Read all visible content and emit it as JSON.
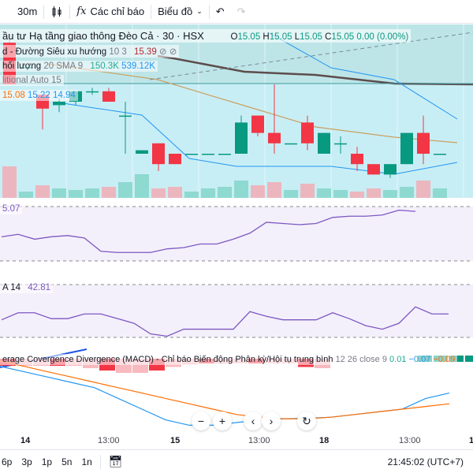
{
  "toolbar": {
    "interval": "30m",
    "indicators": "Các chỉ báo",
    "chart_type": "Biểu đồ",
    "candle_icon": "candles-icon",
    "fx_icon": "fx-icon",
    "undo_icon": "undo-icon",
    "redo_icon": "redo-icon"
  },
  "legend": {
    "symbol": "ầu tư Hạ tầng giao thông Đèo Cả · 30 · HSX",
    "o_label": "O",
    "o": "15.05",
    "h_label": "H",
    "h": "15.05",
    "l_label": "L",
    "l": "15.05",
    "c_label": "C",
    "c": "15.05",
    "change": "0.00 (0.00%)",
    "supertrend": "d - Đường Siêu xu hướng",
    "supertrend_params": "10 3",
    "supertrend_value": "15.39",
    "volume": "hối lượng",
    "volume_params": "20 SMA 9",
    "volume_v1": "150.3K",
    "volume_v2": "539.12K",
    "bb": "litional Auto 15",
    "bb_v1": "15.08",
    "bb_v2": "15.22",
    "bb_v3": "14.94"
  },
  "rsi": {
    "value": "5.07"
  },
  "pane2": {
    "label": "A 14",
    "value": "42.81"
  },
  "macd": {
    "label": "erage Covergence Divergence (MACD) - Chỉ báo Biến động Phân kỳ/Hội tụ trung bình",
    "params": "12 26 close 9",
    "v1": "0.01",
    "v2": "−0.07",
    "v3": "−0.09"
  },
  "colors": {
    "up": "#089981",
    "down": "#f23645",
    "bg": "#c8eef5",
    "rsi": "#7e57c2",
    "macd": "#2196f3",
    "signal": "#ff6d00"
  },
  "time_axis": [
    {
      "label": "14",
      "bold": true
    },
    {
      "label": "13:00"
    },
    {
      "label": "15",
      "bold": true
    },
    {
      "label": "13:00"
    },
    {
      "label": "18",
      "bold": true
    },
    {
      "label": "13:00"
    },
    {
      "label": "1",
      "bold": true
    }
  ],
  "bottom": {
    "ranges": [
      "6p",
      "3p",
      "1p",
      "5n",
      "1n"
    ],
    "clock": "21:45:02 (UTC+7)",
    "date_icon": "goto-date-icon"
  },
  "nav": {
    "zoom_out": "−",
    "zoom_in": "+",
    "left": "‹",
    "right": "›",
    "reset": "↻"
  },
  "chart_data": {
    "type": "candlestick",
    "candles": [
      [
        15.37,
        15.38,
        15.25,
        15.25
      ],
      [
        15.3,
        15.3,
        15.3,
        15.3
      ],
      [
        15.22,
        15.22,
        15.12,
        15.18
      ],
      [
        15.19,
        15.21,
        15.17,
        15.2
      ],
      [
        15.2,
        15.23,
        15.19,
        15.23
      ],
      [
        15.23,
        15.24,
        15.22,
        15.23
      ],
      [
        15.23,
        15.24,
        15.2,
        15.2
      ],
      [
        15.16,
        15.2,
        15.05,
        15.16
      ],
      [
        15.05,
        15.06,
        15.05,
        15.06
      ],
      [
        15.08,
        15.08,
        15.0,
        15.02
      ],
      [
        15.05,
        15.05,
        15.02,
        15.02
      ],
      [
        15.05,
        15.05,
        15.05,
        15.05
      ],
      [
        15.05,
        15.05,
        15.05,
        15.05
      ],
      [
        15.05,
        15.05,
        15.05,
        15.05
      ],
      [
        15.05,
        15.16,
        15.05,
        15.14
      ],
      [
        15.16,
        15.16,
        15.1,
        15.11
      ],
      [
        15.11,
        15.25,
        15.05,
        15.08
      ],
      [
        15.08,
        15.08,
        15.08,
        15.08
      ],
      [
        15.14,
        15.16,
        15.06,
        15.08
      ],
      [
        15.05,
        15.11,
        15.05,
        15.11
      ],
      [
        15.08,
        15.1,
        15.05,
        15.08
      ],
      [
        15.05,
        15.07,
        15.0,
        15.02
      ],
      [
        15.02,
        15.02,
        14.99,
        14.99
      ],
      [
        14.99,
        15.02,
        14.98,
        15.02
      ],
      [
        15.02,
        15.11,
        15.02,
        15.11
      ],
      [
        15.11,
        15.16,
        15.02,
        15.05
      ],
      [
        15.05,
        15.05,
        15.05,
        15.05
      ]
    ],
    "volume": [
      1,
      0.2,
      0.4,
      0.3,
      0.25,
      0.3,
      0.35,
      0.5,
      0.75,
      0.3,
      0.35,
      0.2,
      0.3,
      0.35,
      0.55,
      0.4,
      0.5,
      0.25,
      0.45,
      0.3,
      0.25,
      0.2,
      0.3,
      0.25,
      0.35,
      0.55,
      0.3
    ],
    "rsi": [
      50,
      52,
      48,
      50,
      51,
      49,
      38,
      37,
      37,
      37,
      40,
      41,
      44,
      44,
      48,
      53,
      62,
      61,
      60,
      61,
      66,
      67,
      67,
      68,
      72,
      71
    ],
    "pane2": [
      45,
      51,
      51,
      46,
      46,
      50,
      50,
      46,
      42,
      33,
      31,
      37,
      37,
      37,
      37,
      52,
      48,
      45,
      45,
      45,
      51,
      46,
      40,
      37,
      42,
      56,
      50,
      50
    ],
    "macd": [
      -0.02,
      -0.03,
      -0.04,
      -0.05,
      -0.06,
      -0.08,
      -0.1,
      -0.12,
      -0.13,
      -0.13,
      -0.125,
      -0.12,
      -0.118,
      -0.117,
      -0.115,
      -0.11,
      -0.105,
      -0.1,
      -0.08,
      -0.07
    ],
    "signal": [
      -0.01,
      -0.02,
      -0.03,
      -0.04,
      -0.05,
      -0.06,
      -0.07,
      -0.08,
      -0.09,
      -0.1,
      -0.11,
      -0.115,
      -0.118,
      -0.118,
      -0.115,
      -0.11,
      -0.105,
      -0.1,
      -0.095,
      -0.09
    ]
  }
}
